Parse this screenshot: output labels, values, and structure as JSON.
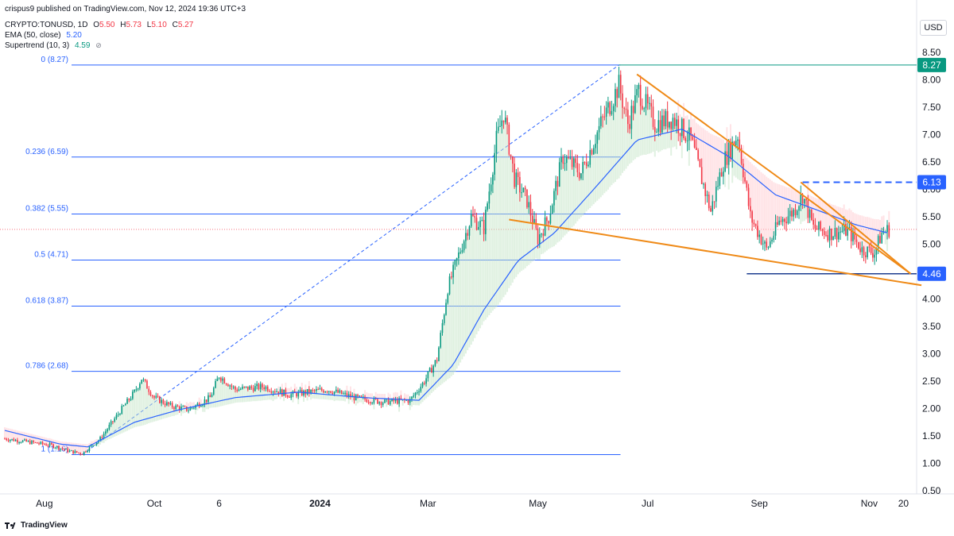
{
  "header": {
    "publish_line": "crispus9 published on TradingView.com, Nov 12, 2024 19:36 UTC+3",
    "symbol": "CRYPTO:TONUSD, 1D",
    "ohlc": {
      "o_label": "O",
      "o": "5.50",
      "h_label": "H",
      "h": "5.73",
      "l_label": "L",
      "l": "5.10",
      "c_label": "C",
      "c": "5.27"
    },
    "ema_label": "EMA (50, close)",
    "ema_value": "5.20",
    "supertrend_label": "Supertrend (10, 3)",
    "supertrend_value": "4.59",
    "eye_icon": "eye-off-icon"
  },
  "currency_button": "USD",
  "footer": {
    "logo_text": "TradingView",
    "logo_icon": "tradingview-logo-icon"
  },
  "colors": {
    "up": "#089981",
    "down": "#f23645",
    "ema": "#2962ff",
    "fib": "#2962ff",
    "trendline": "#ef8a17",
    "supertrend_up": "#4caf50",
    "supertrend_down": "#f7525f",
    "high_badge": "#089981"
  },
  "chart_data": {
    "type": "candlestick",
    "symbol": "CRYPTO:TONUSD",
    "interval": "1D",
    "y_axis": {
      "ticks": [
        "0.50",
        "1.00",
        "1.50",
        "2.00",
        "2.50",
        "3.00",
        "3.50",
        "4.00",
        "4.50",
        "5.00",
        "5.50",
        "6.00",
        "6.50",
        "7.00",
        "7.50",
        "8.00",
        "8.50"
      ],
      "range": [
        0.5,
        8.5
      ]
    },
    "x_axis": {
      "labels": [
        {
          "text": "Aug",
          "date": "2023-08-01"
        },
        {
          "text": "Oct",
          "date": "2023-10-01"
        },
        {
          "text": "6",
          "date": "2023-11-06"
        },
        {
          "text": "2024",
          "date": "2024-01-01"
        },
        {
          "text": "Mar",
          "date": "2024-03-01"
        },
        {
          "text": "May",
          "date": "2024-05-01"
        },
        {
          "text": "Jul",
          "date": "2024-07-01"
        },
        {
          "text": "Sep",
          "date": "2024-09-01"
        },
        {
          "text": "Nov",
          "date": "2024-11-01"
        },
        {
          "text": "20",
          "date": "2024-11-20"
        }
      ],
      "range": [
        "2023-07-10",
        "2024-11-26"
      ]
    },
    "fibonacci": {
      "anchor_low": {
        "date": "2023-08-22",
        "value": 1.16
      },
      "anchor_high": {
        "date": "2024-06-15",
        "value": 8.27
      },
      "end_date": "2024-06-15",
      "levels": [
        {
          "label": "0 (8.27)",
          "value": 8.27
        },
        {
          "label": "0.236 (6.59)",
          "value": 6.59
        },
        {
          "label": "0.382 (5.55)",
          "value": 5.55
        },
        {
          "label": "0.5 (4.71)",
          "value": 4.71
        },
        {
          "label": "0.618 (3.87)",
          "value": 3.87
        },
        {
          "label": "0.786 (2.68)",
          "value": 2.68
        },
        {
          "label": "1 (1.16)",
          "value": 1.16
        }
      ]
    },
    "price_markers": [
      {
        "label": "8.27",
        "value": 8.27,
        "style": "solid-green"
      },
      {
        "label": "6.13",
        "value": 6.13,
        "style": "dashed-blue"
      },
      {
        "label": "4.46",
        "value": 4.46,
        "style": "solid-blue"
      }
    ],
    "last_price": 5.27,
    "trendlines": [
      {
        "from": {
          "date": "2024-06-25",
          "value": 8.1
        },
        "to": {
          "date": "2024-11-24",
          "value": 4.46
        }
      },
      {
        "from": {
          "date": "2024-09-24",
          "value": 6.13
        },
        "to": {
          "date": "2024-11-24",
          "value": 4.46
        }
      },
      {
        "from": {
          "date": "2024-04-15",
          "value": 5.45
        },
        "to": {
          "date": "2024-11-30",
          "value": 4.25
        }
      }
    ],
    "price_path": [
      {
        "date": "2023-07-10",
        "value": 1.45
      },
      {
        "date": "2023-07-25",
        "value": 1.38
      },
      {
        "date": "2023-08-05",
        "value": 1.33
      },
      {
        "date": "2023-08-15",
        "value": 1.22
      },
      {
        "date": "2023-08-22",
        "value": 1.18
      },
      {
        "date": "2023-09-01",
        "value": 1.45
      },
      {
        "date": "2023-09-12",
        "value": 1.95
      },
      {
        "date": "2023-09-20",
        "value": 2.3
      },
      {
        "date": "2023-09-24",
        "value": 2.55
      },
      {
        "date": "2023-10-01",
        "value": 2.2
      },
      {
        "date": "2023-10-10",
        "value": 2.05
      },
      {
        "date": "2023-10-20",
        "value": 1.98
      },
      {
        "date": "2023-11-01",
        "value": 2.2
      },
      {
        "date": "2023-11-06",
        "value": 2.6
      },
      {
        "date": "2023-11-15",
        "value": 2.35
      },
      {
        "date": "2023-12-01",
        "value": 2.4
      },
      {
        "date": "2023-12-15",
        "value": 2.25
      },
      {
        "date": "2024-01-05",
        "value": 2.35
      },
      {
        "date": "2024-01-20",
        "value": 2.2
      },
      {
        "date": "2024-02-05",
        "value": 2.12
      },
      {
        "date": "2024-02-20",
        "value": 2.15
      },
      {
        "date": "2024-02-28",
        "value": 2.5
      },
      {
        "date": "2024-03-06",
        "value": 2.9
      },
      {
        "date": "2024-03-12",
        "value": 4.2
      },
      {
        "date": "2024-03-18",
        "value": 4.8
      },
      {
        "date": "2024-03-25",
        "value": 5.5
      },
      {
        "date": "2024-04-01",
        "value": 5.3
      },
      {
        "date": "2024-04-08",
        "value": 6.9
      },
      {
        "date": "2024-04-12",
        "value": 7.4
      },
      {
        "date": "2024-04-18",
        "value": 6.2
      },
      {
        "date": "2024-04-25",
        "value": 5.8
      },
      {
        "date": "2024-05-01",
        "value": 5.1
      },
      {
        "date": "2024-05-07",
        "value": 5.5
      },
      {
        "date": "2024-05-15",
        "value": 6.6
      },
      {
        "date": "2024-05-25",
        "value": 6.3
      },
      {
        "date": "2024-06-05",
        "value": 7.2
      },
      {
        "date": "2024-06-15",
        "value": 7.9
      },
      {
        "date": "2024-06-20",
        "value": 7.2
      },
      {
        "date": "2024-06-26",
        "value": 7.8
      },
      {
        "date": "2024-07-05",
        "value": 7.2
      },
      {
        "date": "2024-07-15",
        "value": 7.3
      },
      {
        "date": "2024-07-25",
        "value": 6.9
      },
      {
        "date": "2024-08-05",
        "value": 5.6
      },
      {
        "date": "2024-08-12",
        "value": 6.5
      },
      {
        "date": "2024-08-20",
        "value": 7.0
      },
      {
        "date": "2024-08-27",
        "value": 5.5
      },
      {
        "date": "2024-09-05",
        "value": 4.9
      },
      {
        "date": "2024-09-12",
        "value": 5.4
      },
      {
        "date": "2024-09-20",
        "value": 5.6
      },
      {
        "date": "2024-09-25",
        "value": 5.9
      },
      {
        "date": "2024-10-01",
        "value": 5.3
      },
      {
        "date": "2024-10-10",
        "value": 5.2
      },
      {
        "date": "2024-10-20",
        "value": 5.25
      },
      {
        "date": "2024-10-28",
        "value": 4.9
      },
      {
        "date": "2024-11-04",
        "value": 4.85
      },
      {
        "date": "2024-11-08",
        "value": 5.2
      },
      {
        "date": "2024-11-12",
        "value": 5.27
      }
    ],
    "ema_path": [
      {
        "date": "2023-07-10",
        "value": 1.6
      },
      {
        "date": "2023-08-10",
        "value": 1.35
      },
      {
        "date": "2023-08-25",
        "value": 1.3
      },
      {
        "date": "2023-09-20",
        "value": 1.75
      },
      {
        "date": "2023-10-15",
        "value": 1.98
      },
      {
        "date": "2023-11-15",
        "value": 2.2
      },
      {
        "date": "2023-12-20",
        "value": 2.3
      },
      {
        "date": "2024-01-25",
        "value": 2.2
      },
      {
        "date": "2024-02-25",
        "value": 2.15
      },
      {
        "date": "2024-03-15",
        "value": 2.8
      },
      {
        "date": "2024-04-01",
        "value": 3.8
      },
      {
        "date": "2024-04-20",
        "value": 4.7
      },
      {
        "date": "2024-05-10",
        "value": 5.2
      },
      {
        "date": "2024-06-01",
        "value": 6.0
      },
      {
        "date": "2024-06-25",
        "value": 6.9
      },
      {
        "date": "2024-07-20",
        "value": 7.1
      },
      {
        "date": "2024-08-15",
        "value": 6.6
      },
      {
        "date": "2024-09-10",
        "value": 5.9
      },
      {
        "date": "2024-10-05",
        "value": 5.6
      },
      {
        "date": "2024-10-25",
        "value": 5.35
      },
      {
        "date": "2024-11-12",
        "value": 5.2
      }
    ]
  }
}
